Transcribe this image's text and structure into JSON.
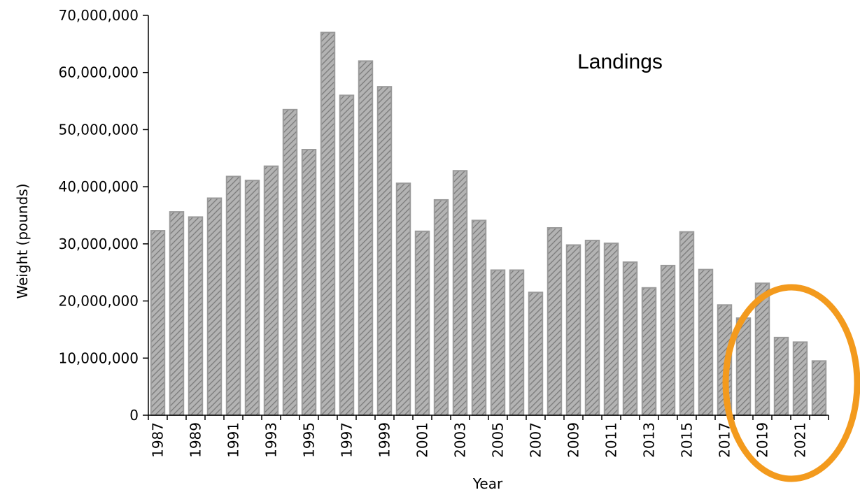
{
  "chart_data": {
    "type": "bar",
    "title": "",
    "xlabel": "Year",
    "ylabel": "Weight (pounds)",
    "ylim": [
      0,
      70000000
    ],
    "yticks": [
      0,
      10000000,
      20000000,
      30000000,
      40000000,
      50000000,
      60000000,
      70000000
    ],
    "ytick_labels": [
      "0",
      "10,000,000",
      "20,000,000",
      "30,000,000",
      "40,000,000",
      "50,000,000",
      "60,000,000",
      "70,000,000"
    ],
    "categories": [
      "1987",
      "1988",
      "1989",
      "1990",
      "1991",
      "1992",
      "1993",
      "1994",
      "1995",
      "1996",
      "1997",
      "1998",
      "1999",
      "2000",
      "2001",
      "2002",
      "2003",
      "2004",
      "2005",
      "2006",
      "2007",
      "2008",
      "2009",
      "2010",
      "2011",
      "2012",
      "2013",
      "2014",
      "2015",
      "2016",
      "2017",
      "2018",
      "2019",
      "2020",
      "2021",
      "2022"
    ],
    "xtick_labels_shown": [
      "1987",
      "1989",
      "1991",
      "1993",
      "1995",
      "1997",
      "1999",
      "2001",
      "2003",
      "2005",
      "2007",
      "2009",
      "2011",
      "2013",
      "2015",
      "2017",
      "2019",
      "2021"
    ],
    "values": [
      32300000,
      35600000,
      34700000,
      38000000,
      41800000,
      41100000,
      43600000,
      53500000,
      46500000,
      67000000,
      56000000,
      62000000,
      57500000,
      40600000,
      32200000,
      37700000,
      42800000,
      34100000,
      25400000,
      25400000,
      21500000,
      32800000,
      29800000,
      30600000,
      30100000,
      26800000,
      22300000,
      26200000,
      32100000,
      25500000,
      19300000,
      17000000,
      23100000,
      13600000,
      12800000,
      9500000
    ],
    "grid": false,
    "legend": "none",
    "annotation": {
      "text": "Landings"
    },
    "highlight": {
      "shape": "ellipse",
      "color": "#f39a1d",
      "covers_categories": [
        "2018",
        "2019",
        "2020",
        "2021",
        "2022"
      ]
    },
    "colors": {
      "bar_fill": "#b3b3b3",
      "bar_hatch": "#7a7a7a",
      "bar_stroke": "#9a9a9a",
      "axis": "#000000"
    }
  }
}
